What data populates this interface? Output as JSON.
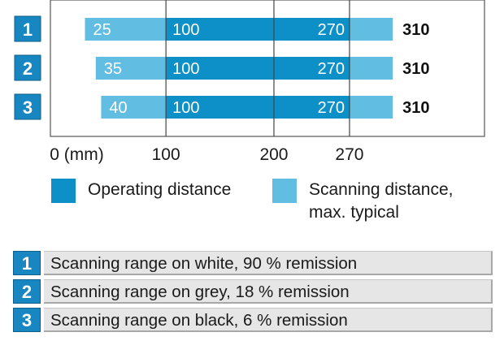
{
  "chart_data": {
    "type": "bar",
    "orientation": "horizontal",
    "unit": "(mm)",
    "x_ticks": [
      {
        "value": 0,
        "label": "0 (mm)"
      },
      {
        "value": 100,
        "label": "100"
      },
      {
        "value": 200,
        "label": "200"
      },
      {
        "value": 270,
        "label": "270"
      }
    ],
    "xlim": [
      -7,
      395
    ],
    "grid": "vertical lines at 100, 200, 270",
    "rows": [
      {
        "id": "1",
        "scanning": [
          25,
          310
        ],
        "operating": [
          100,
          270
        ]
      },
      {
        "id": "2",
        "scanning": [
          35,
          310
        ],
        "operating": [
          100,
          270
        ]
      },
      {
        "id": "3",
        "scanning": [
          40,
          310
        ],
        "operating": [
          100,
          270
        ]
      }
    ],
    "legend": [
      {
        "label": "Operating distance",
        "color": "#0d8fc8"
      },
      {
        "label": "Scanning distance,\nmax. typical",
        "color": "#62bde3"
      }
    ],
    "legend_position": "bottom",
    "colors": {
      "operating": "#0d8fc8",
      "scanning": "#62bde3",
      "badge": "#1786c1",
      "grid": "#444444"
    }
  },
  "table": {
    "rows": [
      {
        "num": "1",
        "label": "Scanning range on white, 90 % remission"
      },
      {
        "num": "2",
        "label": "Scanning range on grey, 18 % remission"
      },
      {
        "num": "3",
        "label": "Scanning range on black, 6 % remission"
      }
    ]
  }
}
